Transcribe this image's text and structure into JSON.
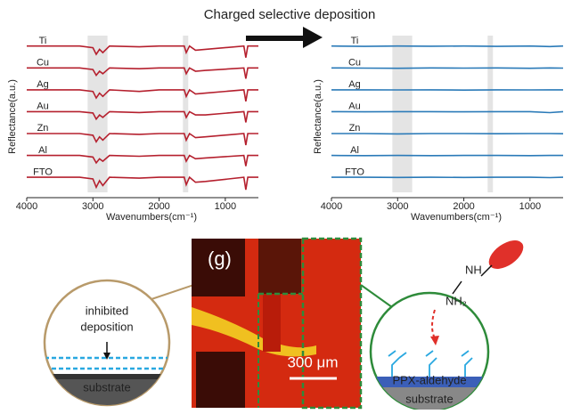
{
  "chart_data": [
    {
      "type": "line",
      "title": "Charged selective deposition",
      "x_label": "Wavenumbers(cm⁻¹)",
      "y_label": "Reflectance(a.u.)",
      "xlim": [
        4000,
        500
      ],
      "xticks": [
        4000,
        3000,
        2000,
        1000
      ],
      "shaded_ranges": [
        [
          3080,
          2780
        ],
        [
          1640,
          1560
        ]
      ],
      "x": [
        4000,
        3200,
        3000,
        2950,
        2900,
        2850,
        2750,
        2300,
        2000,
        1620,
        1590,
        1540,
        1450,
        1300,
        720,
        690,
        660,
        500
      ],
      "series": [
        {
          "name": "Ti",
          "color": "#b5202e",
          "values": [
            0.8,
            0.8,
            0.7,
            0.3,
            0.6,
            0.4,
            0.8,
            0.75,
            0.8,
            0.8,
            0.4,
            0.8,
            0.55,
            0.6,
            0.8,
            0.1,
            0.8,
            0.8
          ]
        },
        {
          "name": "Cu",
          "color": "#b5202e",
          "values": [
            0.8,
            0.8,
            0.7,
            0.35,
            0.6,
            0.45,
            0.8,
            0.75,
            0.8,
            0.8,
            0.45,
            0.8,
            0.6,
            0.65,
            0.8,
            0.15,
            0.8,
            0.8
          ]
        },
        {
          "name": "Ag",
          "color": "#b5202e",
          "values": [
            0.8,
            0.8,
            0.7,
            0.3,
            0.6,
            0.4,
            0.8,
            0.7,
            0.8,
            0.8,
            0.4,
            0.8,
            0.55,
            0.6,
            0.8,
            0.1,
            0.8,
            0.8
          ]
        },
        {
          "name": "Au",
          "color": "#b5202e",
          "values": [
            0.8,
            0.8,
            0.72,
            0.35,
            0.6,
            0.45,
            0.8,
            0.75,
            0.8,
            0.8,
            0.45,
            0.8,
            0.6,
            0.6,
            0.8,
            0.15,
            0.8,
            0.8
          ]
        },
        {
          "name": "Zn",
          "color": "#b5202e",
          "values": [
            0.8,
            0.8,
            0.7,
            0.3,
            0.6,
            0.4,
            0.8,
            0.75,
            0.8,
            0.8,
            0.4,
            0.8,
            0.55,
            0.6,
            0.8,
            0.1,
            0.8,
            0.8
          ]
        },
        {
          "name": "Al",
          "color": "#b5202e",
          "values": [
            0.8,
            0.8,
            0.7,
            0.35,
            0.6,
            0.45,
            0.8,
            0.75,
            0.8,
            0.8,
            0.45,
            0.8,
            0.6,
            0.65,
            0.8,
            0.15,
            0.8,
            0.8
          ]
        },
        {
          "name": "FTO",
          "color": "#b5202e",
          "values": [
            0.8,
            0.8,
            0.7,
            0.2,
            0.6,
            0.3,
            0.8,
            0.75,
            0.8,
            0.8,
            0.35,
            0.8,
            0.5,
            0.55,
            0.8,
            0.05,
            0.8,
            0.8
          ]
        }
      ]
    },
    {
      "type": "line",
      "x_label": "Wavenumbers(cm⁻¹)",
      "y_label": "Reflectance(a.u.)",
      "xlim": [
        4000,
        500
      ],
      "xticks": [
        4000,
        3000,
        2000,
        1000
      ],
      "shaded_ranges": [
        [
          3080,
          2780
        ],
        [
          1640,
          1560
        ]
      ],
      "x": [
        4000,
        3500,
        3000,
        2500,
        2000,
        1500,
        1000,
        700,
        500
      ],
      "series": [
        {
          "name": "Ti",
          "color": "#2a7ab8",
          "values": [
            0.8,
            0.78,
            0.8,
            0.79,
            0.8,
            0.78,
            0.8,
            0.77,
            0.8
          ]
        },
        {
          "name": "Cu",
          "color": "#2a7ab8",
          "values": [
            0.8,
            0.79,
            0.78,
            0.8,
            0.79,
            0.8,
            0.78,
            0.8,
            0.79
          ]
        },
        {
          "name": "Ag",
          "color": "#2a7ab8",
          "values": [
            0.8,
            0.8,
            0.79,
            0.8,
            0.78,
            0.8,
            0.79,
            0.8,
            0.8
          ]
        },
        {
          "name": "Au",
          "color": "#2a7ab8",
          "values": [
            0.8,
            0.79,
            0.8,
            0.8,
            0.79,
            0.8,
            0.8,
            0.74,
            0.8
          ]
        },
        {
          "name": "Zn",
          "color": "#2a7ab8",
          "values": [
            0.8,
            0.8,
            0.78,
            0.8,
            0.8,
            0.79,
            0.8,
            0.8,
            0.79
          ]
        },
        {
          "name": "Al",
          "color": "#2a7ab8",
          "values": [
            0.8,
            0.79,
            0.8,
            0.79,
            0.8,
            0.8,
            0.79,
            0.8,
            0.8
          ]
        },
        {
          "name": "FTO",
          "color": "#2a7ab8",
          "values": [
            0.8,
            0.8,
            0.79,
            0.8,
            0.79,
            0.8,
            0.8,
            0.78,
            0.8
          ]
        }
      ]
    }
  ],
  "diagram": {
    "panel_label": "(g)",
    "scale_bar": "300 μm",
    "inhibited_line1": "inhibited",
    "inhibited_line2": "deposition",
    "left_substrate": "substrate",
    "amine_nh": "NH",
    "amine_nh2": "NH₂",
    "ppx_label": "PPX-aldehyde",
    "right_substrate": "substrate"
  }
}
